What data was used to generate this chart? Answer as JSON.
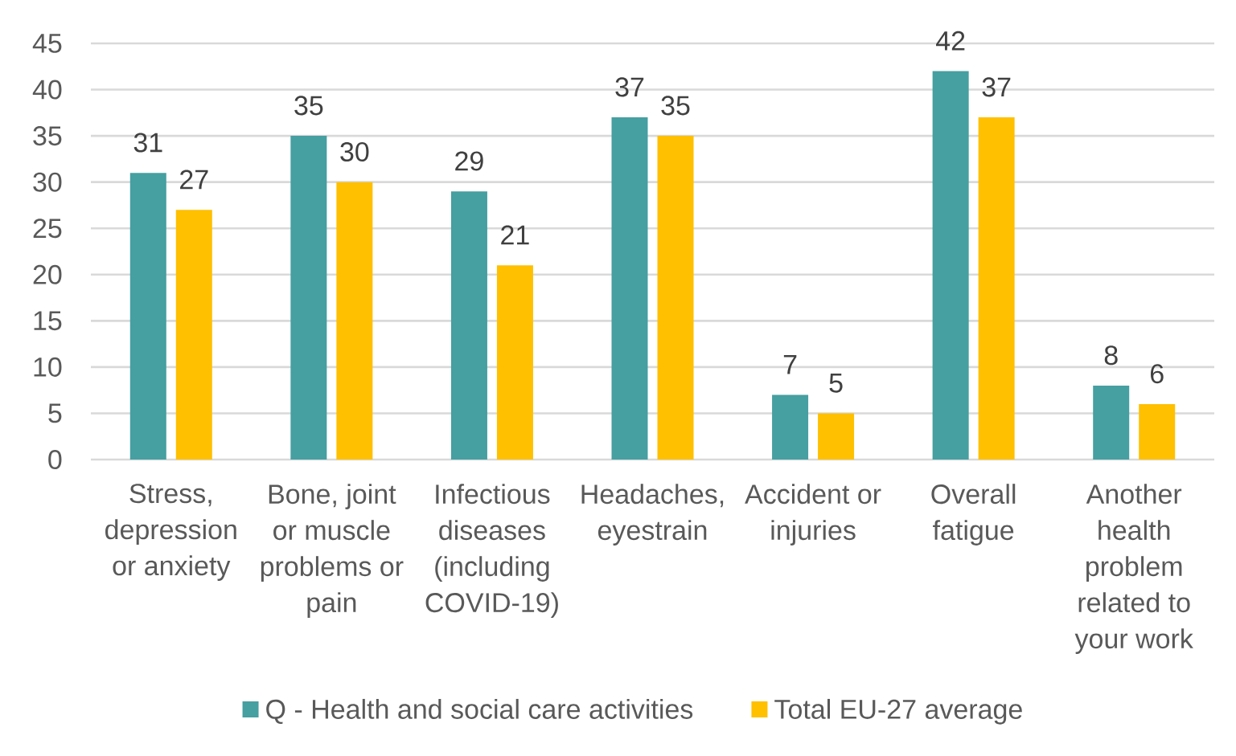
{
  "chart_data": {
    "type": "bar",
    "categories": [
      "Stress, depression or anxiety",
      "Bone, joint or muscle problems or pain",
      "Infectious diseases (including COVID-19)",
      "Headaches, eyestrain",
      "Accident or injuries",
      "Overall fatigue",
      "Another health problem related to your work"
    ],
    "series": [
      {
        "name": "Q - Health and social care activities",
        "color": "#469FA1",
        "values": [
          31,
          35,
          29,
          37,
          7,
          42,
          8
        ]
      },
      {
        "name": "Total EU-27 average",
        "color": "#FFC000",
        "values": [
          27,
          30,
          21,
          35,
          5,
          37,
          6
        ]
      }
    ],
    "ylim": [
      0,
      45
    ],
    "yticks": [
      0,
      5,
      10,
      15,
      20,
      25,
      30,
      35,
      40,
      45
    ],
    "grid": "y",
    "legend": "bottom",
    "data_labels": true
  }
}
